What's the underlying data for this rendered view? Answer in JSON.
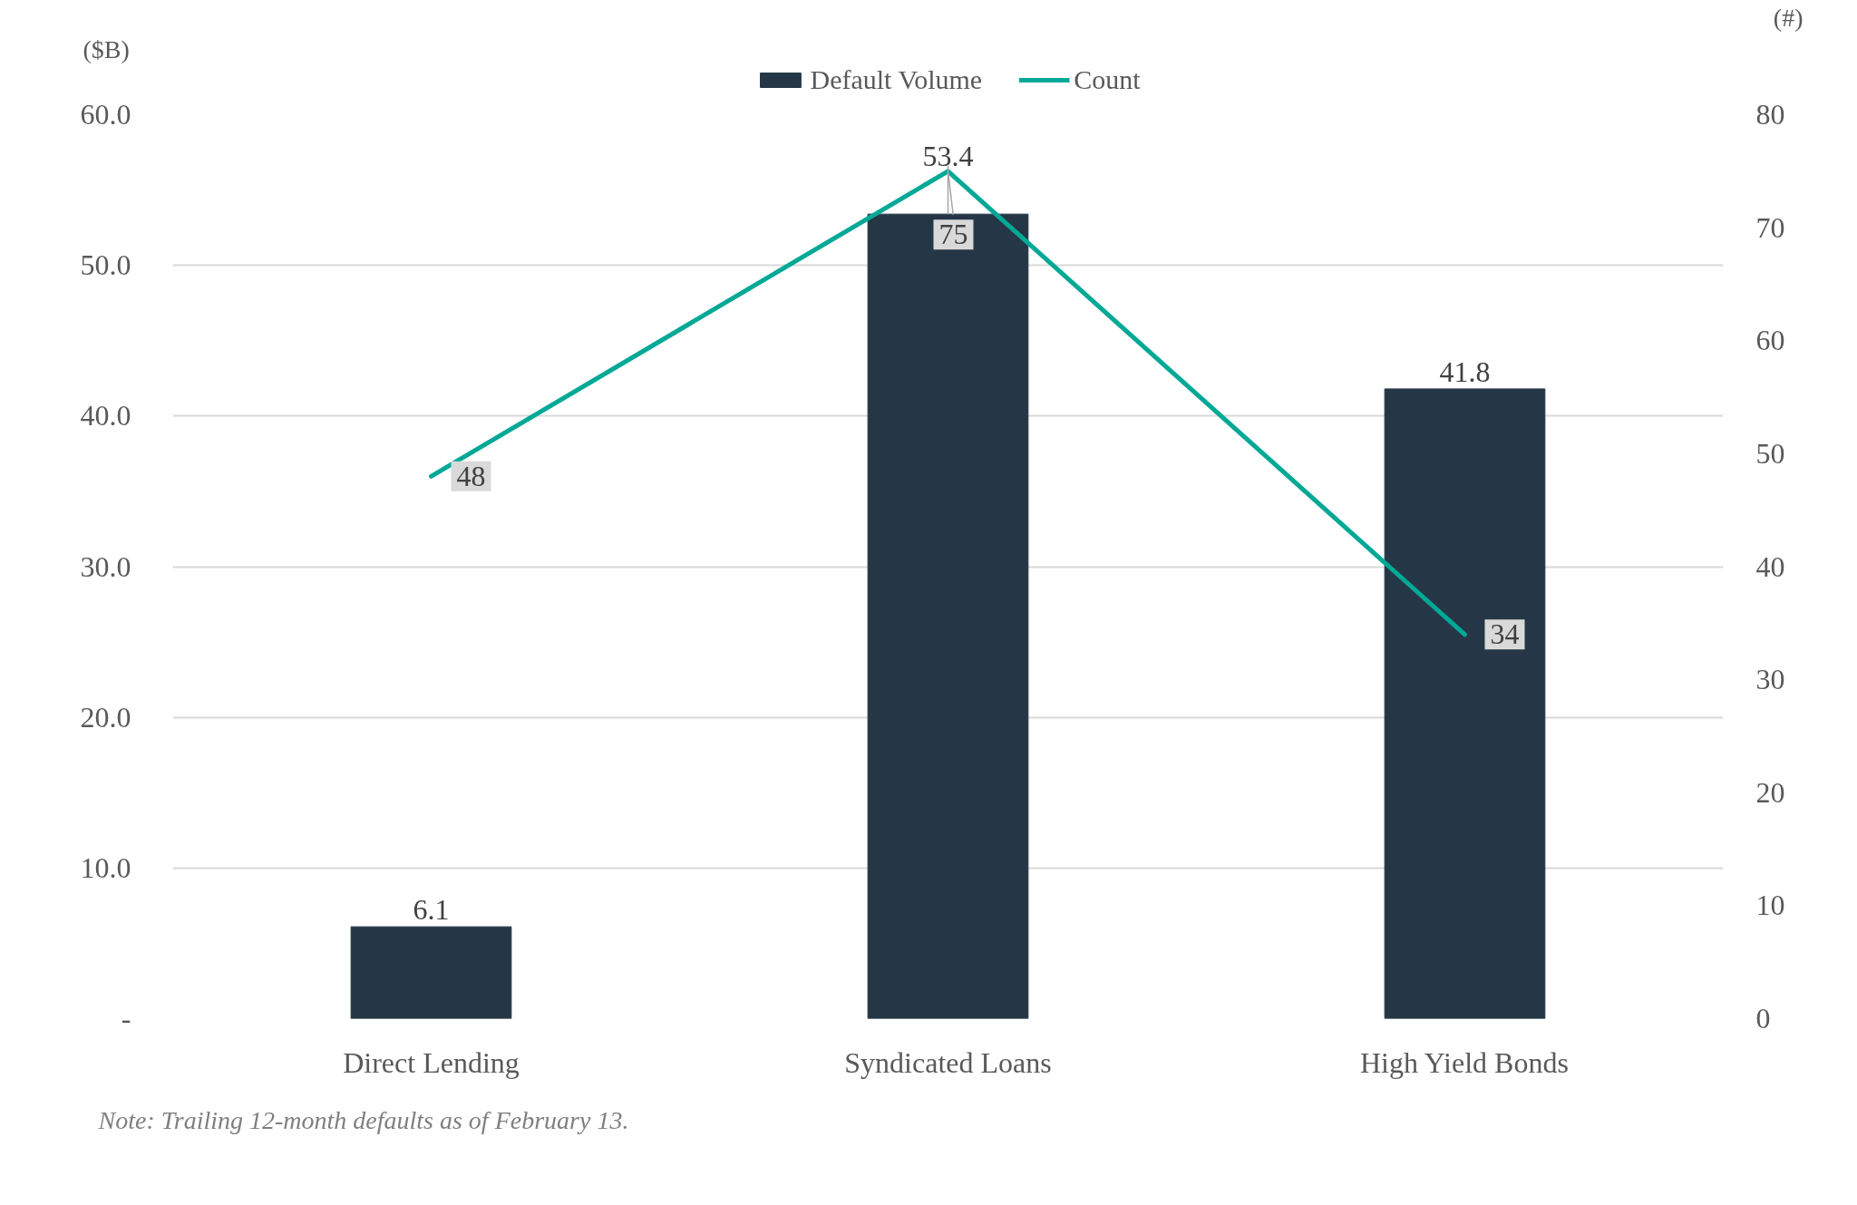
{
  "chart_data": {
    "type": "bar",
    "categories": [
      "Direct Lending",
      "Syndicated Loans",
      "High Yield Bonds"
    ],
    "ylabel": "($B)",
    "y2label": "(#)",
    "series": [
      {
        "name": "Default Volume",
        "color": "#253746",
        "values": [
          6.1,
          53.4,
          41.8
        ]
      },
      {
        "name": "Count",
        "type": "line",
        "axis": "y2",
        "color": "#00a896",
        "values": [
          48,
          75,
          34
        ]
      }
    ],
    "ylim": [
      0,
      60
    ],
    "yticks": [
      {
        "value": 0,
        "label": "-"
      },
      {
        "value": 10,
        "label": "10.0"
      },
      {
        "value": 20,
        "label": "20.0"
      },
      {
        "value": 30,
        "label": "30.0"
      },
      {
        "value": 40,
        "label": "40.0"
      },
      {
        "value": 50,
        "label": "50.0"
      },
      {
        "value": 60,
        "label": "60.0"
      }
    ],
    "y2lim": [
      0,
      80
    ],
    "y2ticks": [
      0,
      10,
      20,
      30,
      40,
      50,
      60,
      70,
      80
    ],
    "data_labels": true,
    "grid": "y",
    "legend": "top",
    "annotations": [
      "Note: Trailing 12-month defaults as of February 13."
    ]
  }
}
